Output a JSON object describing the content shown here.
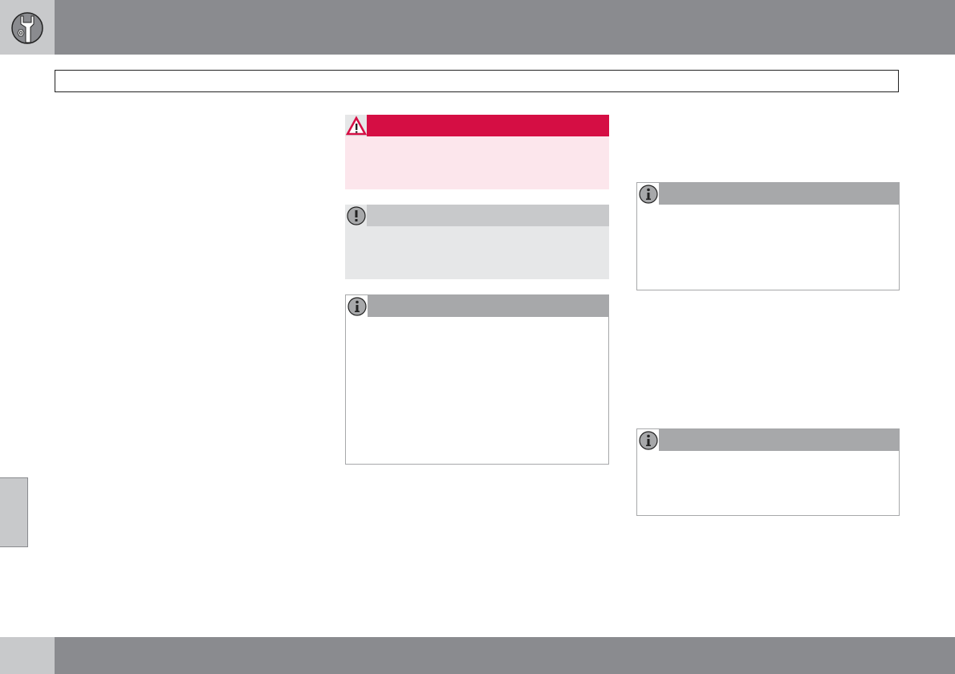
{
  "colors": {
    "header_bar": "#8a8b8f",
    "header_square": "#c8c9cb",
    "warning_header": "#d50e44",
    "warning_body": "#fce6ec",
    "important_header": "#c8c9cb",
    "important_body": "#e6e7e8",
    "note_header": "#a7a8aa"
  },
  "icons": {
    "chapter": "wrench-icon",
    "warning": "warning-triangle-icon",
    "important": "exclamation-icon",
    "note": "info-icon"
  }
}
